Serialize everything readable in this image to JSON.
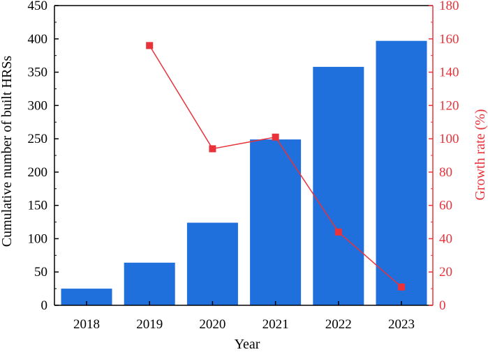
{
  "chart_data": {
    "type": "bar",
    "categories": [
      "2018",
      "2019",
      "2020",
      "2021",
      "2022",
      "2023"
    ],
    "xlabel": "Year",
    "ylabel": "Cumulative number of built HRSs",
    "y2label": "Growth rate (%)",
    "ylim": [
      0,
      450
    ],
    "y2lim": [
      0,
      180
    ],
    "yticks": [
      0,
      50,
      100,
      150,
      200,
      250,
      300,
      350,
      400,
      450
    ],
    "y2ticks": [
      0,
      20,
      40,
      60,
      80,
      100,
      120,
      140,
      160,
      180
    ],
    "grid": false,
    "series": [
      {
        "type": "bar",
        "axis": "left",
        "color": "#1f6fdc",
        "values": [
          25,
          64,
          124,
          249,
          358,
          397
        ]
      },
      {
        "type": "line",
        "axis": "right",
        "color": "#e8333a",
        "marker": "square",
        "values": [
          null,
          156,
          94,
          101,
          44,
          11
        ]
      }
    ],
    "colors": {
      "left_axis": "#000000",
      "right_axis": "#e8333a"
    }
  }
}
